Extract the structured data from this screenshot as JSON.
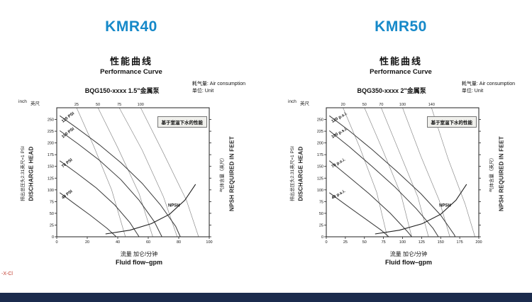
{
  "page": {
    "left_heading": "KMR40",
    "right_heading": "KMR50",
    "watermark": "-X-Cl",
    "accent_color": "#1689c9",
    "footer_color": "#1b2b4d"
  },
  "chart_data": [
    {
      "type": "line",
      "title_cn": "性能曲线",
      "title_en": "Performance Curve",
      "model": "BQG150-xxxx 1.5\"金属泵",
      "legend": {
        "air": "耗气量: Air consumption",
        "unit": "单位: Unit",
        "note": "基于室温下水的性能"
      },
      "corner": [
        "inch",
        "英尺"
      ],
      "xlabel_cn": "流量 加仑/分钟",
      "xlabel_en": "Fluid flow–gpm",
      "ylabel_left_cn": "排出总压头2.31英尺=1 PSI",
      "ylabel_left_en": "DISCHARGE HEAD",
      "ylabel_right_cn": "气体含量（英尺）",
      "ylabel_right_en": "NPSH REQUIRED IN FEET",
      "xlim": [
        0,
        100
      ],
      "ylim": [
        0,
        275
      ],
      "xticks": [
        0,
        20,
        40,
        60,
        80,
        100
      ],
      "yticks": [
        0,
        25,
        50,
        75,
        100,
        125,
        150,
        175,
        200,
        225,
        250
      ],
      "series": [
        {
          "label": "120 PSI",
          "points": [
            [
              2,
              258
            ],
            [
              14,
              230
            ],
            [
              28,
              196
            ],
            [
              42,
              158
            ],
            [
              56,
              114
            ],
            [
              68,
              68
            ],
            [
              78,
              22
            ],
            [
              81,
              0
            ]
          ],
          "label_pos": {
            "x": 4,
            "y": 243,
            "angle": -38
          }
        },
        {
          "label": "100 PSI",
          "points": [
            [
              2,
              226
            ],
            [
              14,
              198
            ],
            [
              28,
              163
            ],
            [
              42,
              122
            ],
            [
              54,
              78
            ],
            [
              64,
              32
            ],
            [
              69,
              0
            ]
          ],
          "label_pos": {
            "x": 4,
            "y": 210,
            "angle": -38
          }
        },
        {
          "label": "70 PSI",
          "points": [
            [
              2,
              162
            ],
            [
              13,
              136
            ],
            [
              26,
              104
            ],
            [
              38,
              68
            ],
            [
              48,
              30
            ],
            [
              54,
              0
            ]
          ],
          "label_pos": {
            "x": 4,
            "y": 147,
            "angle": -38
          }
        },
        {
          "label": "40 PSI",
          "points": [
            [
              2,
              94
            ],
            [
              11,
              72
            ],
            [
              22,
              46
            ],
            [
              33,
              18
            ],
            [
              39,
              0
            ]
          ],
          "label_pos": {
            "x": 4,
            "y": 80,
            "angle": -38
          }
        }
      ],
      "npsh": {
        "label": "NPSH",
        "points": [
          [
            32,
            6
          ],
          [
            48,
            14
          ],
          [
            62,
            28
          ],
          [
            74,
            48
          ],
          [
            84,
            78
          ],
          [
            91,
            112
          ]
        ],
        "label_pos": {
          "x": 73,
          "y": 64
        }
      },
      "air_lines": [
        {
          "label": "25",
          "points": [
            [
              13,
              275
            ],
            [
              24,
              195
            ],
            [
              36,
              100
            ],
            [
              45,
              0
            ]
          ]
        },
        {
          "label": "50",
          "points": [
            [
              27,
              275
            ],
            [
              40,
              190
            ],
            [
              54,
              92
            ],
            [
              63,
              0
            ]
          ]
        },
        {
          "label": "75",
          "points": [
            [
              41,
              275
            ],
            [
              56,
              185
            ],
            [
              70,
              85
            ],
            [
              79,
              0
            ]
          ]
        },
        {
          "label": "100",
          "points": [
            [
              55,
              275
            ],
            [
              70,
              178
            ],
            [
              85,
              78
            ],
            [
              93,
              0
            ]
          ]
        }
      ]
    },
    {
      "type": "line",
      "title_cn": "性能曲线",
      "title_en": "Performance Curve",
      "model": "BQG350-xxxx 2\"金属泵",
      "legend": {
        "air": "耗气量: Air consumption",
        "unit": "单位: Unit",
        "note": "基于室温下水的性能"
      },
      "corner": [
        "inch",
        "英尺"
      ],
      "xlabel_cn": "流量 加仑/分钟",
      "xlabel_en": "Fluid flow–gpm",
      "ylabel_left_cn": "排出总压头2.31英尺=1 PSI",
      "ylabel_left_en": "DISCHARGE HEAD",
      "ylabel_right_cn": "气体含量（英尺）",
      "ylabel_right_en": "NPSH REQUIRED IN FEET",
      "xlim": [
        0,
        200
      ],
      "ylim": [
        0,
        275
      ],
      "xticks": [
        0,
        25,
        50,
        75,
        100,
        125,
        150,
        175,
        200
      ],
      "yticks": [
        0,
        25,
        50,
        75,
        100,
        125,
        150,
        175,
        200,
        225,
        250
      ],
      "series": [
        {
          "label": "120 p.s.i.",
          "points": [
            [
              4,
              258
            ],
            [
              30,
              226
            ],
            [
              60,
              186
            ],
            [
              92,
              140
            ],
            [
              124,
              92
            ],
            [
              150,
              46
            ],
            [
              168,
              4
            ],
            [
              169,
              0
            ]
          ],
          "label_pos": {
            "x": 8,
            "y": 243,
            "angle": -30
          }
        },
        {
          "label": "100 p.s.i.",
          "points": [
            [
              4,
              226
            ],
            [
              30,
              192
            ],
            [
              60,
              150
            ],
            [
              90,
              106
            ],
            [
              118,
              60
            ],
            [
              140,
              18
            ],
            [
              147,
              0
            ]
          ],
          "label_pos": {
            "x": 8,
            "y": 210,
            "angle": -30
          }
        },
        {
          "label": "70 p.s.i.",
          "points": [
            [
              4,
              162
            ],
            [
              28,
              130
            ],
            [
              56,
              92
            ],
            [
              84,
              50
            ],
            [
              106,
              12
            ],
            [
              112,
              0
            ]
          ],
          "label_pos": {
            "x": 8,
            "y": 147,
            "angle": -30
          }
        },
        {
          "label": "40 p.s.i.",
          "points": [
            [
              4,
              94
            ],
            [
              24,
              70
            ],
            [
              48,
              42
            ],
            [
              72,
              14
            ],
            [
              82,
              0
            ]
          ],
          "label_pos": {
            "x": 8,
            "y": 80,
            "angle": -30
          }
        }
      ],
      "npsh": {
        "label": "NPSH",
        "points": [
          [
            64,
            6
          ],
          [
            96,
            14
          ],
          [
            126,
            28
          ],
          [
            150,
            48
          ],
          [
            170,
            78
          ],
          [
            184,
            112
          ]
        ],
        "label_pos": {
          "x": 148,
          "y": 64
        }
      },
      "air_lines": [
        {
          "label": "20",
          "points": [
            [
              22,
              275
            ],
            [
              44,
              190
            ],
            [
              66,
              95
            ],
            [
              80,
              0
            ]
          ]
        },
        {
          "label": "50",
          "points": [
            [
              50,
              275
            ],
            [
              74,
              185
            ],
            [
              98,
              90
            ],
            [
              112,
              0
            ]
          ]
        },
        {
          "label": "70",
          "points": [
            [
              72,
              275
            ],
            [
              96,
              180
            ],
            [
              120,
              85
            ],
            [
              134,
              0
            ]
          ]
        },
        {
          "label": "100",
          "points": [
            [
              100,
              275
            ],
            [
              124,
              172
            ],
            [
              148,
              78
            ],
            [
              162,
              0
            ]
          ]
        },
        {
          "label": "140",
          "points": [
            [
              138,
              275
            ],
            [
              160,
              165
            ],
            [
              182,
              70
            ],
            [
              195,
              0
            ]
          ]
        }
      ]
    }
  ]
}
